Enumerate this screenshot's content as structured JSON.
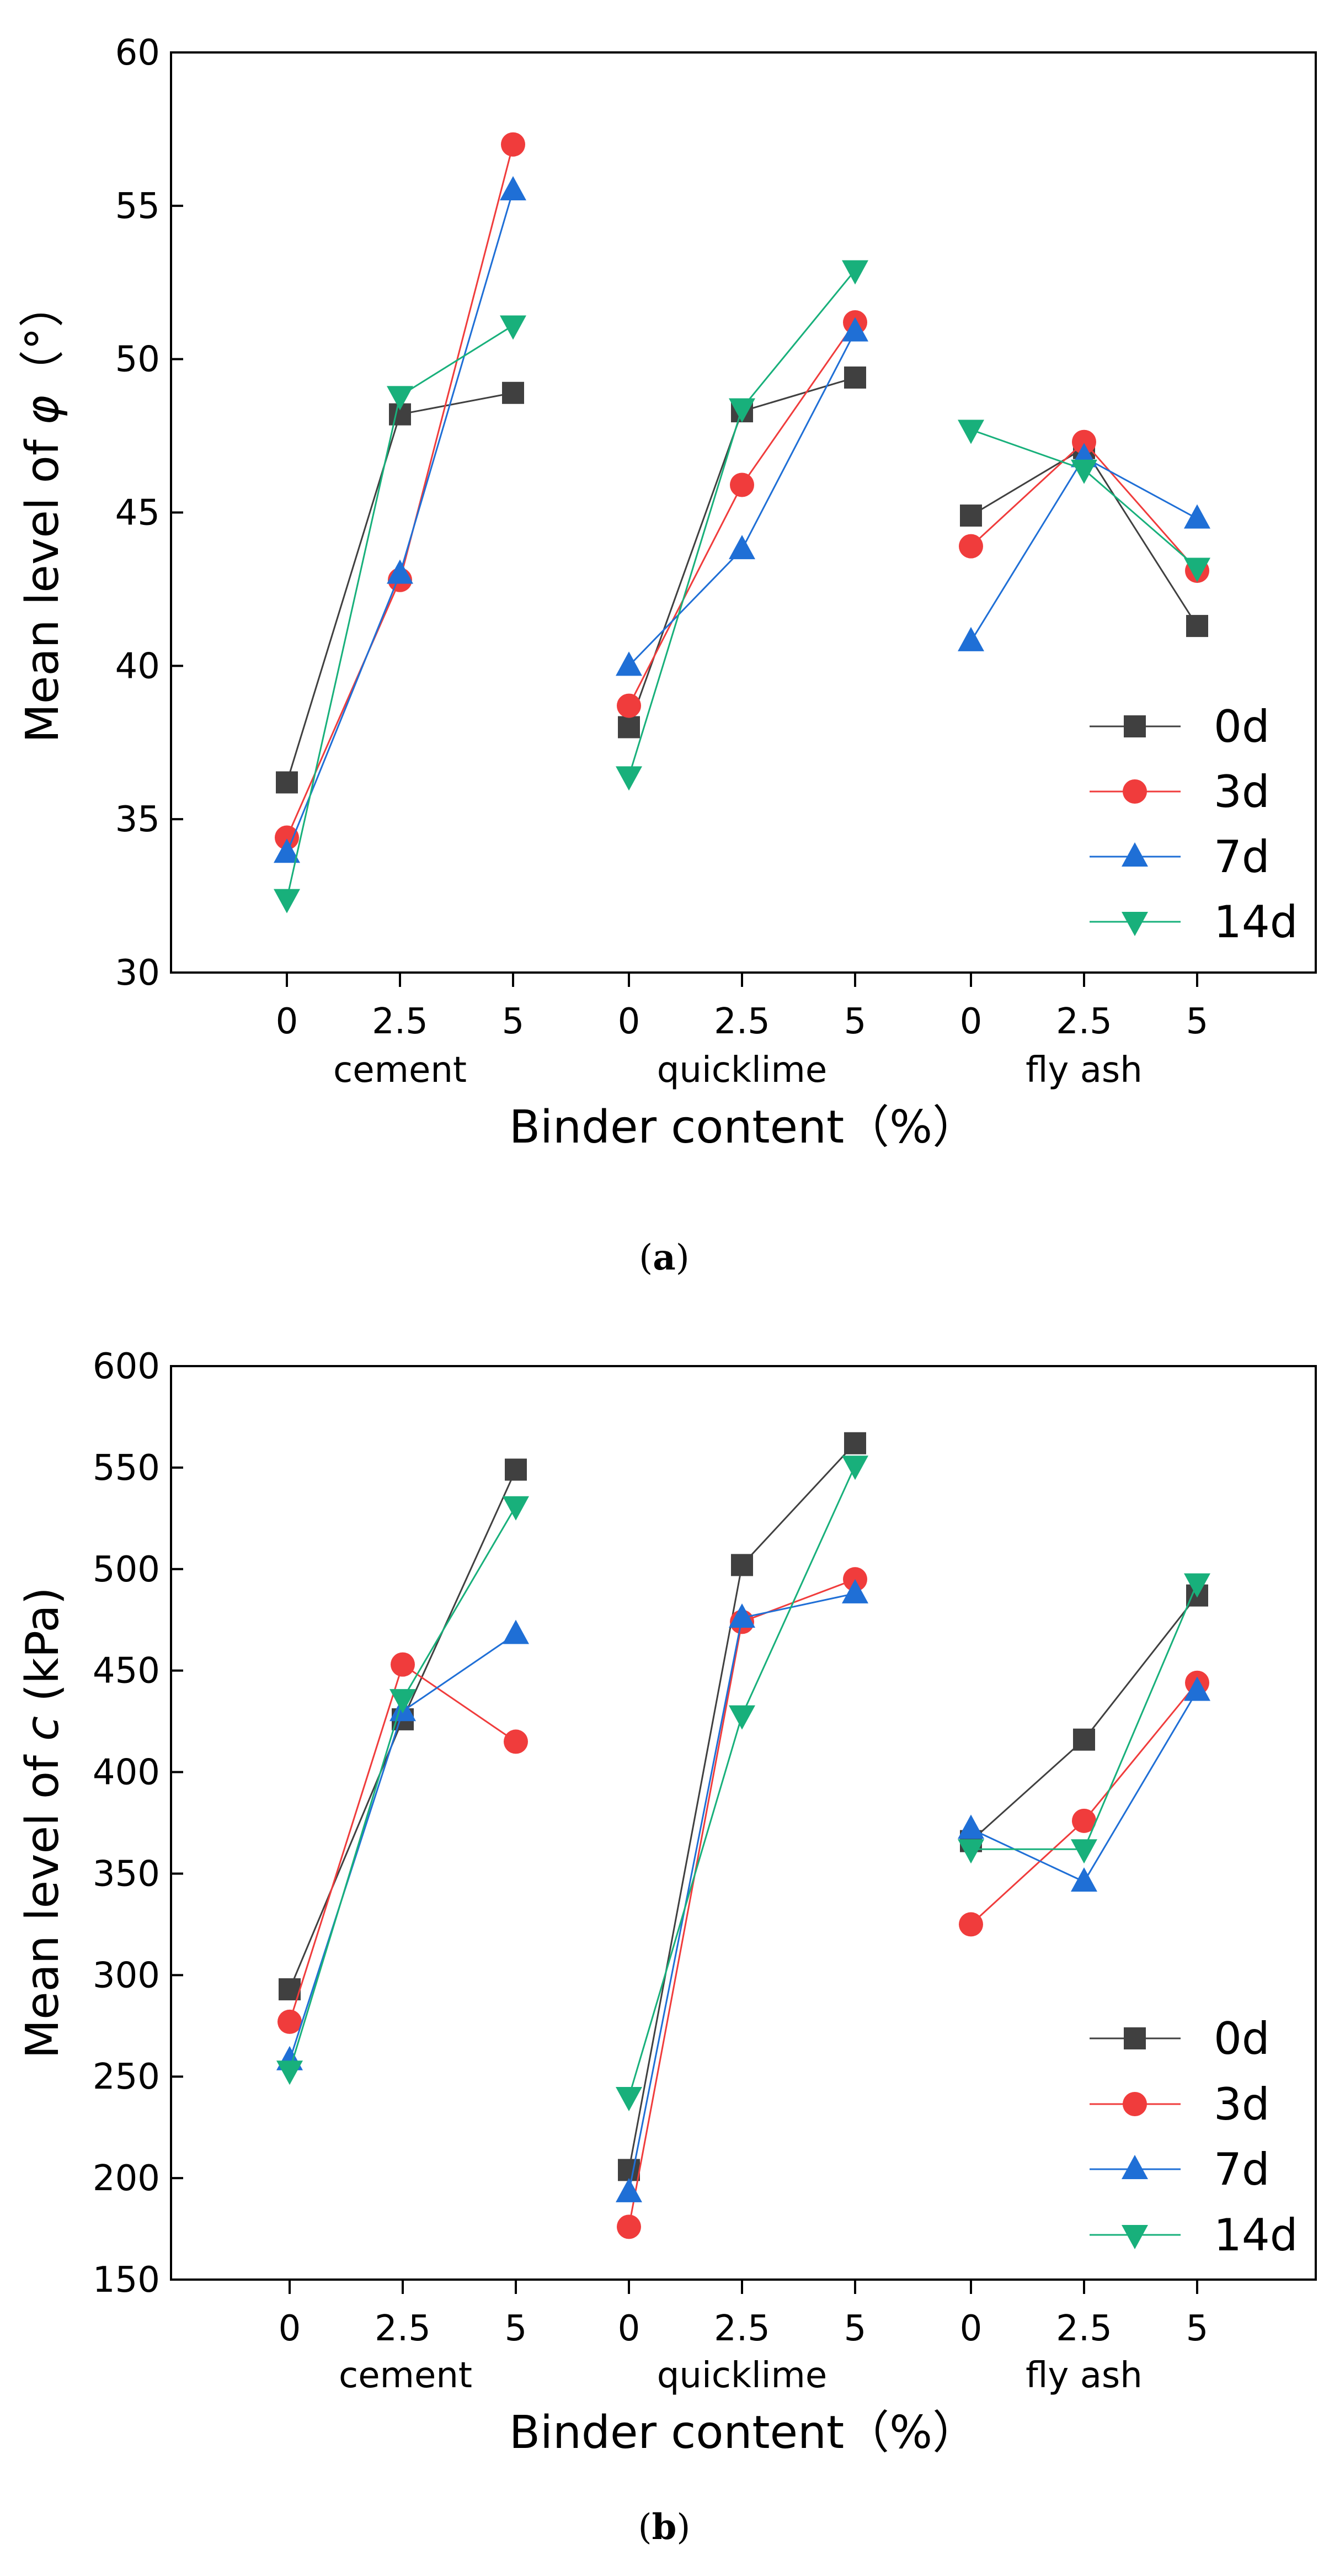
{
  "chart_data": [
    {
      "type": "line",
      "panel": "a",
      "caption_letter": "a",
      "ylabel_prefix": "Mean level of ",
      "ylabel_symbol": "φ",
      "ylabel_unit": "（°）",
      "xlabel": "Binder content（%）",
      "ylim": [
        30,
        60
      ],
      "yticks": [
        30,
        35,
        40,
        45,
        50,
        55,
        60
      ],
      "groups": [
        "cement",
        "quicklime",
        "fly ash"
      ],
      "x_ticks": [
        "0",
        "2.5",
        "5",
        "0",
        "2.5",
        "5",
        "0",
        "2.5",
        "5"
      ],
      "grid": false,
      "legend_position": "bottom-right",
      "series": [
        {
          "name": "0d",
          "color": "#404040",
          "marker": "square",
          "values": [
            36.2,
            48.2,
            48.9,
            38.0,
            48.3,
            49.4,
            44.9,
            47.1,
            41.3
          ]
        },
        {
          "name": "3d",
          "color": "#f03c3c",
          "marker": "circle",
          "values": [
            34.4,
            42.8,
            57.0,
            38.7,
            45.9,
            51.2,
            43.9,
            47.3,
            43.1
          ]
        },
        {
          "name": "7d",
          "color": "#1f6fd6",
          "marker": "triangle-up",
          "values": [
            33.9,
            43.0,
            55.5,
            40.0,
            43.8,
            50.9,
            40.8,
            46.8,
            44.8
          ]
        },
        {
          "name": "14d",
          "color": "#18b07b",
          "marker": "triangle-down",
          "values": [
            32.4,
            48.8,
            51.1,
            36.4,
            48.4,
            52.9,
            47.7,
            46.4,
            43.2
          ]
        }
      ]
    },
    {
      "type": "line",
      "panel": "b",
      "caption_letter": "b",
      "ylabel_prefix": "Mean level of ",
      "ylabel_symbol": "c",
      "ylabel_unit": " (kPa)",
      "xlabel": "Binder content（%）",
      "ylim": [
        150,
        600
      ],
      "yticks": [
        150,
        200,
        250,
        300,
        350,
        400,
        450,
        500,
        550,
        600
      ],
      "groups": [
        "cement",
        "quicklime",
        "fly ash"
      ],
      "x_ticks": [
        "0",
        "2.5",
        "5",
        "0",
        "2.5",
        "5",
        "0",
        "2.5",
        "5"
      ],
      "grid": false,
      "legend_position": "bottom-right",
      "series": [
        {
          "name": "0d",
          "color": "#404040",
          "marker": "square",
          "values": [
            293,
            426,
            549,
            204,
            502,
            562,
            366,
            416,
            487
          ]
        },
        {
          "name": "3d",
          "color": "#f03c3c",
          "marker": "circle",
          "values": [
            277,
            453,
            415,
            176,
            474,
            495,
            325,
            376,
            444
          ]
        },
        {
          "name": "7d",
          "color": "#1f6fd6",
          "marker": "triangle-up",
          "values": [
            258,
            430,
            468,
            193,
            476,
            488,
            372,
            346,
            440
          ]
        },
        {
          "name": "14d",
          "color": "#18b07b",
          "marker": "triangle-down",
          "values": [
            253,
            436,
            531,
            240,
            428,
            551,
            362,
            362,
            493
          ]
        }
      ]
    }
  ]
}
